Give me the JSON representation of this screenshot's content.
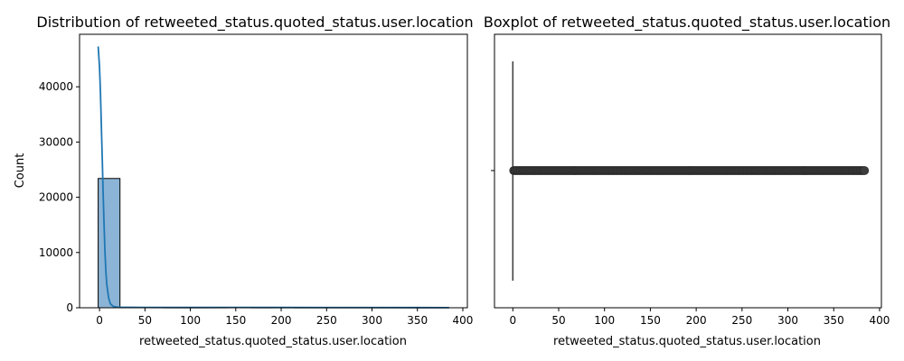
{
  "chart_data": [
    {
      "type": "bar",
      "title": "Distribution of retweeted_status.quoted_status.user.location",
      "xlabel": "retweeted_status.quoted_status.user.location",
      "ylabel": "Count",
      "xlim": [
        -22,
        405
      ],
      "ylim": [
        0,
        49500
      ],
      "xticks": [
        0,
        50,
        100,
        150,
        200,
        250,
        300,
        350,
        400
      ],
      "yticks": [
        0,
        10000,
        20000,
        30000,
        40000
      ],
      "grid": false,
      "bar_color": "#8cb4d6",
      "line_color": "#1f77b4",
      "bins": [
        {
          "start": -1.5,
          "end": 22.5,
          "count": 23400
        },
        {
          "start": 22.5,
          "end": 46.5,
          "count": 60
        },
        {
          "start": 46.5,
          "end": 70.5,
          "count": 50
        },
        {
          "start": 70.5,
          "end": 94.5,
          "count": 40
        },
        {
          "start": 94.5,
          "end": 118.5,
          "count": 40
        },
        {
          "start": 118.5,
          "end": 142.5,
          "count": 40
        },
        {
          "start": 142.5,
          "end": 166.5,
          "count": 60
        },
        {
          "start": 166.5,
          "end": 190.5,
          "count": 40
        },
        {
          "start": 190.5,
          "end": 214.5,
          "count": 50
        },
        {
          "start": 214.5,
          "end": 238.5,
          "count": 40
        },
        {
          "start": 238.5,
          "end": 262.5,
          "count": 40
        },
        {
          "start": 262.5,
          "end": 286.5,
          "count": 40
        },
        {
          "start": 286.5,
          "end": 310.5,
          "count": 40
        },
        {
          "start": 310.5,
          "end": 334.5,
          "count": 40
        },
        {
          "start": 334.5,
          "end": 358.5,
          "count": 40
        },
        {
          "start": 358.5,
          "end": 384.5,
          "count": 40
        }
      ],
      "kde": [
        {
          "x": -1.5,
          "y": 47300
        },
        {
          "x": 0,
          "y": 43500
        },
        {
          "x": 1,
          "y": 39000
        },
        {
          "x": 2,
          "y": 33000
        },
        {
          "x": 3,
          "y": 27000
        },
        {
          "x": 4,
          "y": 20500
        },
        {
          "x": 5,
          "y": 15000
        },
        {
          "x": 6,
          "y": 10000
        },
        {
          "x": 7,
          "y": 6500
        },
        {
          "x": 8,
          "y": 4200
        },
        {
          "x": 10,
          "y": 1800
        },
        {
          "x": 12,
          "y": 700
        },
        {
          "x": 15,
          "y": 250
        },
        {
          "x": 20,
          "y": 100
        },
        {
          "x": 50,
          "y": 60
        },
        {
          "x": 100,
          "y": 50
        },
        {
          "x": 150,
          "y": 60
        },
        {
          "x": 200,
          "y": 50
        },
        {
          "x": 250,
          "y": 40
        },
        {
          "x": 300,
          "y": 40
        },
        {
          "x": 350,
          "y": 30
        },
        {
          "x": 385,
          "y": 20
        }
      ]
    },
    {
      "type": "box",
      "title": "Boxplot of retweeted_status.quoted_status.user.location",
      "xlabel": "retweeted_status.quoted_status.user.location",
      "xlim": [
        -20,
        402
      ],
      "xticks": [
        0,
        50,
        100,
        150,
        200,
        250,
        300,
        350,
        400
      ],
      "median": 0,
      "q1": 0,
      "q3": 0,
      "whisker_low": 0,
      "whisker_high": 0,
      "outlier_range": [
        1,
        384
      ],
      "color": "#3d3d3d"
    }
  ]
}
